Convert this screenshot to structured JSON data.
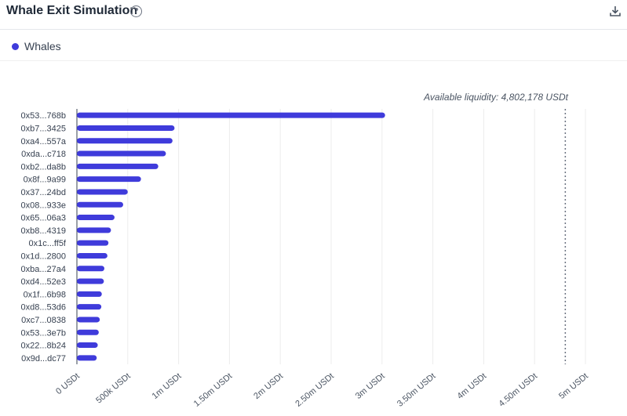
{
  "header": {
    "title": "Whale Exit Simulation",
    "help_icon": "question-circle-icon",
    "download_icon": "download-icon"
  },
  "legend": {
    "items": [
      {
        "label": "Whales",
        "color": "#3f3bdb"
      }
    ]
  },
  "annotation": {
    "text": "Available liquidity: 4,802,178 USDt",
    "value": 4802178
  },
  "chart_data": {
    "type": "bar",
    "orientation": "horizontal",
    "categories": [
      "0x53...768b",
      "0xb7...3425",
      "0xa4...557a",
      "0xda...c718",
      "0xb2...da8b",
      "0x8f...9a99",
      "0x37...24bd",
      "0x08...933e",
      "0x65...06a3",
      "0xb8...4319",
      "0x1c...ff5f",
      "0x1d...2800",
      "0xba...27a4",
      "0xd4...52e3",
      "0x1f...6b98",
      "0xd8...53d6",
      "0xc7...0838",
      "0x53...3e7b",
      "0x22...8b24",
      "0x9d...dc77"
    ],
    "series": [
      {
        "name": "Whales",
        "color": "#3f3bdb",
        "values": [
          3030000,
          960000,
          940000,
          875000,
          800000,
          630000,
          500000,
          455000,
          370000,
          335000,
          310000,
          300000,
          270000,
          265000,
          245000,
          240000,
          225000,
          215000,
          205000,
          195000
        ]
      }
    ],
    "xlim": [
      0,
      5000000
    ],
    "xticks": [
      "0 USDt",
      "500k USDt",
      "1m USDt",
      "1.50m USDt",
      "2m USDt",
      "2.50m USDt",
      "3m USDt",
      "3.50m USDt",
      "4m USDt",
      "4.50m USDt",
      "5m USDt"
    ],
    "grid": true,
    "reference_line": {
      "value": 4802178,
      "style": "dotted"
    }
  }
}
